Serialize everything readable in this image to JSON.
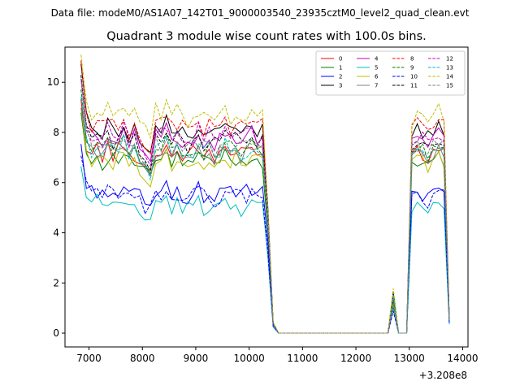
{
  "figure": {
    "suptitle": "Data file: modeM0/AS1A07_142T01_9000003540_23935cztM0_level2_quad_clean.evt"
  },
  "chart_data": {
    "type": "line",
    "title": "Quadrant 3 module wise count rates with 100.0s bins.",
    "xlabel": "",
    "ylabel": "",
    "x_offset_label": "+3.208e8",
    "xlim": [
      6550,
      14100
    ],
    "ylim": [
      -0.55,
      11.4
    ],
    "x_ticks": [
      7000,
      8000,
      9000,
      10000,
      11000,
      12000,
      13000,
      14000
    ],
    "y_ticks": [
      0,
      2,
      4,
      6,
      8,
      10
    ],
    "grid": false,
    "legend_position": "top-right",
    "legend_columns": 4,
    "base_profile": {
      "segment1": {
        "x": [
          6850,
          6950,
          7050,
          7150,
          7250,
          7350,
          7450,
          7550,
          7650,
          7750,
          7850,
          7950,
          8050,
          8150,
          8250,
          8350,
          8450,
          8550,
          8650,
          8750,
          8850,
          8950,
          9050,
          9150,
          9250,
          9350,
          9450,
          9550,
          9650,
          9750,
          9850,
          9950,
          10050,
          10150,
          10250,
          10350,
          10450,
          10550
        ],
        "shape": [
          1.3,
          1.05,
          1.0,
          1.02,
          0.98,
          1.03,
          0.99,
          1.01,
          1.04,
          0.97,
          1.0,
          0.96,
          0.92,
          0.88,
          1.02,
          1.0,
          1.03,
          0.98,
          1.01,
          0.99,
          0.97,
          1.0,
          1.02,
          0.98,
          1.01,
          0.97,
          1.0,
          1.03,
          0.99,
          1.01,
          0.98,
          1.0,
          1.02,
          0.99,
          1.0,
          0.6,
          0.05,
          0.0
        ]
      },
      "zero_x": [
        10650,
        10800,
        11000,
        11200,
        11400,
        11600,
        11800,
        12000,
        12200,
        12400,
        12600
      ],
      "small_peak": {
        "x": [
          12600,
          12700,
          12800
        ],
        "shape": [
          0.0,
          0.18,
          0.0
        ]
      },
      "segment2": {
        "x": [
          12950,
          13050,
          13150,
          13250,
          13350,
          13450,
          13550,
          13650,
          13750
        ],
        "shape": [
          0.0,
          0.97,
          1.0,
          0.98,
          0.96,
          0.99,
          1.02,
          1.0,
          0.07
        ]
      }
    },
    "series": [
      {
        "name": "0",
        "color": "#ff0000",
        "dash": false,
        "level": 7.2
      },
      {
        "name": "1",
        "color": "#008000",
        "dash": false,
        "level": 6.9
      },
      {
        "name": "2",
        "color": "#0000ff",
        "dash": false,
        "level": 5.6
      },
      {
        "name": "3",
        "color": "#000000",
        "dash": false,
        "level": 8.1
      },
      {
        "name": "4",
        "color": "#bf00bf",
        "dash": false,
        "level": 7.8
      },
      {
        "name": "5",
        "color": "#00bfbf",
        "dash": false,
        "level": 5.1
      },
      {
        "name": "6",
        "color": "#bfbf00",
        "dash": false,
        "level": 6.9
      },
      {
        "name": "7",
        "color": "#808080",
        "dash": false,
        "level": 7.2
      },
      {
        "name": "8",
        "color": "#ff0000",
        "dash": true,
        "level": 8.3
      },
      {
        "name": "9",
        "color": "#008000",
        "dash": true,
        "level": 7.4
      },
      {
        "name": "10",
        "color": "#0000ff",
        "dash": true,
        "level": 5.5
      },
      {
        "name": "11",
        "color": "#000000",
        "dash": true,
        "level": 7.7
      },
      {
        "name": "12",
        "color": "#bf00bf",
        "dash": true,
        "level": 7.9
      },
      {
        "name": "13",
        "color": "#00bfbf",
        "dash": true,
        "level": 7.3
      },
      {
        "name": "14",
        "color": "#bfbf00",
        "dash": true,
        "level": 8.7
      },
      {
        "name": "15",
        "color": "#808080",
        "dash": true,
        "level": 7.5
      }
    ]
  }
}
